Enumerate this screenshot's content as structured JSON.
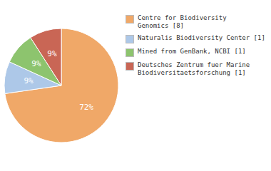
{
  "chart_data": {
    "type": "pie",
    "categories": [
      "Centre for Biodiversity\nGenomics [8]",
      "Naturalis Biodiversity Center [1]",
      "Mined from GenBank, NCBI [1]",
      "Deutsches Zentrum fuer Marine\nBiodiversitaetsforschung [1]"
    ],
    "values": [
      72,
      9,
      9,
      9
    ],
    "value_labels": [
      "72%",
      "9%",
      "9%",
      "9%"
    ],
    "colors": [
      "#f0a868",
      "#adc8e8",
      "#8dc46e",
      "#c96655"
    ],
    "data_labels": true,
    "legend": "right"
  }
}
